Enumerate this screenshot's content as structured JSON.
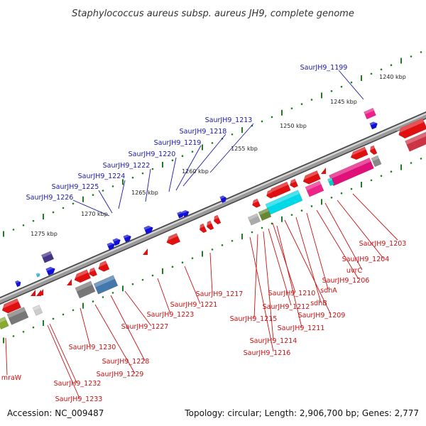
{
  "title": "Staphylococcus aureus subsp. aureus JH9, complete genome",
  "footer": {
    "accession": "Accession: NC_009487",
    "summary": "Topology: circular; Length: 2,906,700 bp; Genes: 2,777"
  },
  "colors": {
    "backbone": "#7a7a7a",
    "backbone_dark": "#444444",
    "plus_label": "#1a1aa8",
    "minus_label": "#cc1111",
    "tick_major": "#1e7d1e",
    "tick_minor": "#1e7d1e",
    "cds_red": "#e01010",
    "cds_blue": "#1010d8",
    "pink": "#e0107a",
    "cyan": "#00d8e8",
    "grey": "#777777",
    "steel": "#4477aa"
  },
  "scale_labels": [
    "1240 kbp",
    "1245 kbp",
    "1250 kbp",
    "1255 kbp",
    "1260 kbp",
    "1265 kbp",
    "1270 kbp",
    "1275 kbp"
  ],
  "plus_labels": [
    "SaurJH9_1199",
    "SaurJH9_1213",
    "SaurJH9_1218",
    "SaurJH9_1219",
    "SaurJH9_1220",
    "SaurJH9_1222",
    "SaurJH9_1224",
    "SaurJH9_1225",
    "SaurJH9_1226"
  ],
  "minus_labels": [
    "SaurJH9_1203",
    "SaurJH9_1204",
    "uvrC",
    "SaurJH9_1206",
    "sdhA",
    "sdhB",
    "SaurJH9_1209",
    "SaurJH9_1210",
    "SaurJH9_1211",
    "SaurJH9_1212",
    "SaurJH9_1214",
    "SaurJH9_1215",
    "SaurJH9_1216",
    "SaurJH9_1217",
    "SaurJH9_1221",
    "SaurJH9_1223",
    "SaurJH9_1227",
    "SaurJH9_1228",
    "SaurJH9_1229",
    "SaurJH9_1230",
    "SaurJH9_1232",
    "SaurJH9_1233",
    "mraW"
  ]
}
